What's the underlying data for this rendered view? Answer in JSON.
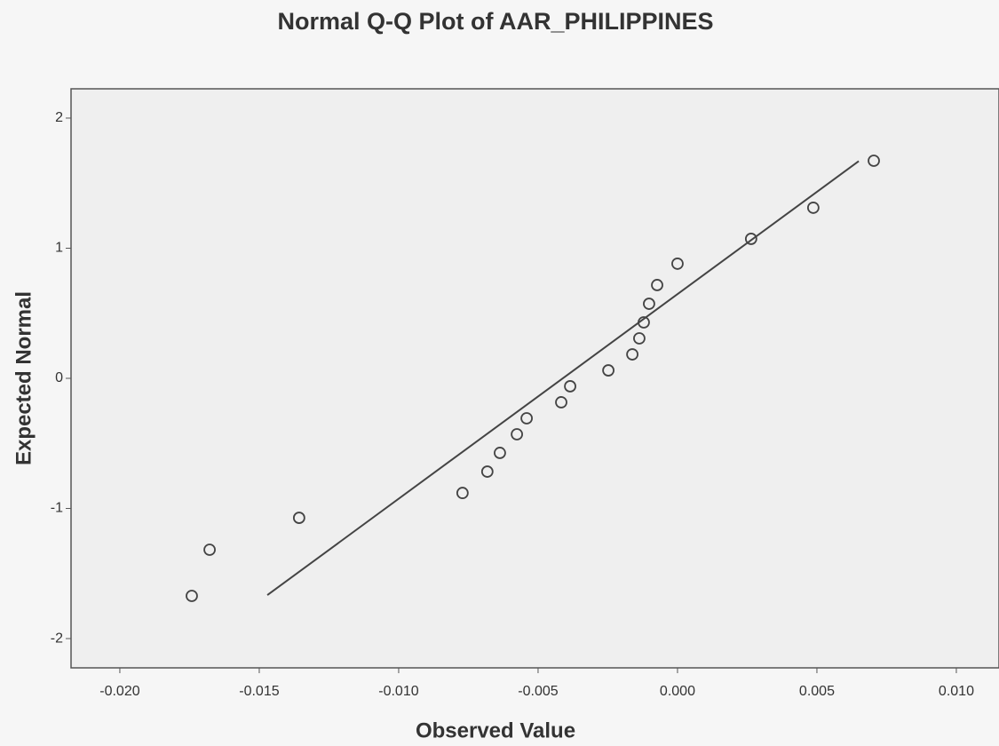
{
  "chart_data": {
    "type": "scatter",
    "title": "Normal Q-Q Plot of AAR_PHILIPPINES",
    "x_label": "Observed Value",
    "y_label": "Expected Normal",
    "x": [
      -0.01742,
      -0.01678,
      -0.01357,
      -0.00771,
      -0.00682,
      -0.00637,
      -0.00576,
      -0.00541,
      -0.00417,
      -0.00385,
      -0.00248,
      -0.00162,
      -0.00137,
      -0.00121,
      -0.00102,
      -0.00073,
      0.0,
      0.00264,
      0.00487,
      0.00704
    ],
    "values": [
      -1.672,
      -1.317,
      -1.072,
      -0.881,
      -0.717,
      -0.573,
      -0.43,
      -0.307,
      -0.184,
      -0.061,
      0.061,
      0.184,
      0.307,
      0.43,
      0.573,
      0.717,
      0.881,
      1.072,
      1.311,
      1.672
    ],
    "reference_line": {
      "x": [
        -0.01471,
        0.0065
      ],
      "y": [
        -1.666,
        1.669
      ]
    },
    "color": "#444444",
    "xlim": [
      -0.02175,
      0.01153
    ],
    "ylim": [
      -2.225,
      2.225
    ],
    "xticks": [
      {
        "value": -0.02,
        "label": "-0.020"
      },
      {
        "value": -0.015,
        "label": "-0.015"
      },
      {
        "value": -0.01,
        "label": "-0.010"
      },
      {
        "value": -0.005,
        "label": "-0.005"
      },
      {
        "value": 0,
        "label": "0.000"
      },
      {
        "value": 0.005,
        "label": "0.005"
      },
      {
        "value": 0.01,
        "label": "0.010"
      }
    ],
    "yticks": [
      -2,
      -1,
      0,
      1,
      2
    ],
    "grid": false
  }
}
